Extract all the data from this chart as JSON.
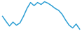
{
  "values": [
    5.5,
    4.2,
    3.0,
    4.0,
    3.2,
    3.8,
    5.5,
    7.5,
    9.0,
    8.2,
    9.0,
    8.5,
    9.2,
    8.8,
    8.2,
    7.5,
    7.0,
    6.0,
    4.5,
    3.2,
    2.5,
    3.5,
    2.2
  ],
  "line_color": "#2e9fd4",
  "background_color": "#ffffff",
  "linewidth": 1.1
}
